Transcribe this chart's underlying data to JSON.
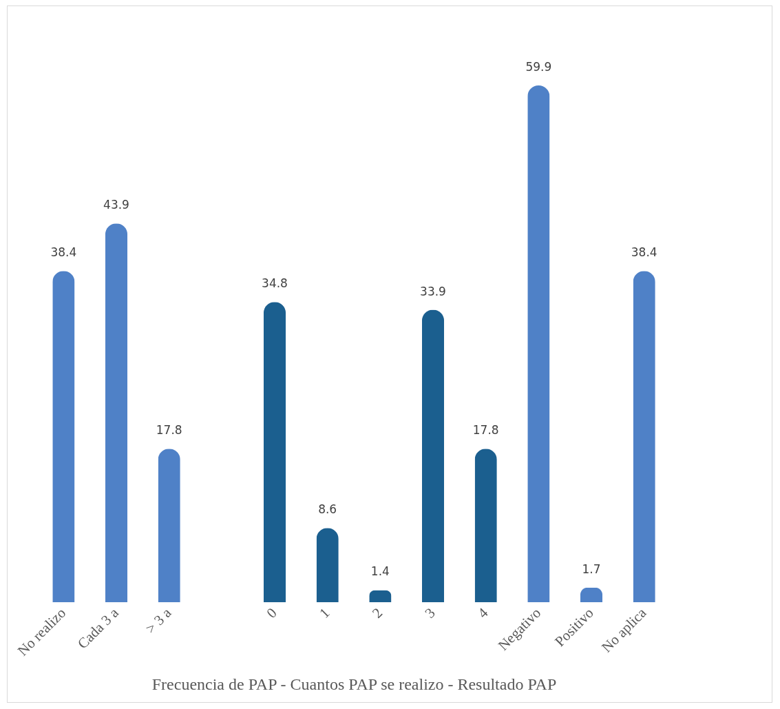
{
  "chart_data": {
    "type": "bar",
    "xlabel": "Frecuencia de PAP - Cuantos PAP se realizo - Resultado PAP",
    "categories": [
      "No realizo",
      "Cada 3 a",
      "> 3 a",
      null,
      "0",
      "1",
      "2",
      "3",
      "4",
      "Negativo",
      "Positivo",
      "No aplica"
    ],
    "values": [
      38.4,
      43.9,
      17.8,
      null,
      34.8,
      8.6,
      1.4,
      33.9,
      17.8,
      59.9,
      1.7,
      38.4
    ],
    "colors": [
      "#4f81c7",
      "#4f81c7",
      "#4f81c7",
      null,
      "#1b5f8f",
      "#1b5f8f",
      "#1b5f8f",
      "#1b5f8f",
      "#1b5f8f",
      "#4f81c7",
      "#4f81c7",
      "#4f81c7"
    ],
    "data_labels": true
  }
}
